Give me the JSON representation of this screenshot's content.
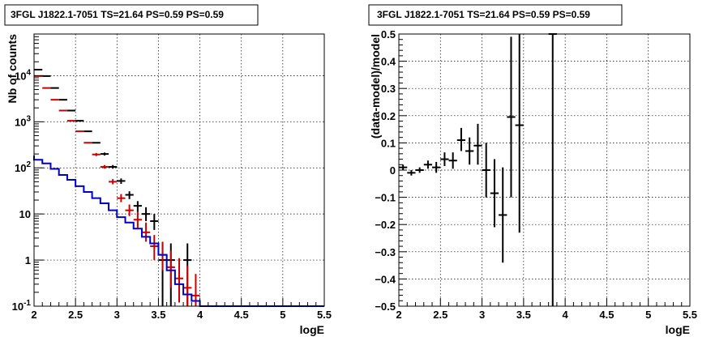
{
  "chart_data": [
    {
      "type": "scatter",
      "title": "3FGL J1822.1-7051 TS=21.64 PS=0.59 PS=0.59",
      "xlabel": "logE",
      "ylabel": "Nb of counts",
      "xlim": [
        2,
        5.5
      ],
      "ylim": [
        0.1,
        80000
      ],
      "yscale": "log",
      "grid": true,
      "x_ticks": [
        "2",
        "2.5",
        "3",
        "3.5",
        "4",
        "4.5",
        "5",
        "5.5"
      ],
      "y_ticks": [
        "10^-1",
        "1",
        "10",
        "10^2",
        "10^3",
        "10^4"
      ],
      "series": [
        {
          "style": "points",
          "color": "#000000",
          "points": [
            {
              "x": 2.05,
              "y": 13500,
              "lo": 13500,
              "hi": 13500
            },
            {
              "x": 2.15,
              "y": 9800,
              "lo": 9800,
              "hi": 9800
            },
            {
              "x": 2.25,
              "y": 5400,
              "lo": 5400,
              "hi": 5400
            },
            {
              "x": 2.35,
              "y": 3000,
              "lo": 3000,
              "hi": 3000
            },
            {
              "x": 2.45,
              "y": 1750,
              "lo": 1750,
              "hi": 1750
            },
            {
              "x": 2.55,
              "y": 1050,
              "lo": 1050,
              "hi": 1050
            },
            {
              "x": 2.65,
              "y": 620,
              "lo": 620,
              "hi": 620
            },
            {
              "x": 2.75,
              "y": 350,
              "lo": 350,
              "hi": 350
            },
            {
              "x": 2.85,
              "y": 200,
              "lo": 185,
              "hi": 215
            },
            {
              "x": 2.95,
              "y": 105,
              "lo": 96,
              "hi": 115
            },
            {
              "x": 3.05,
              "y": 52,
              "lo": 45,
              "hi": 59
            },
            {
              "x": 3.15,
              "y": 26,
              "lo": 21,
              "hi": 31
            },
            {
              "x": 3.25,
              "y": 15,
              "lo": 11,
              "hi": 19
            },
            {
              "x": 3.35,
              "y": 10,
              "lo": 7,
              "hi": 14
            },
            {
              "x": 3.45,
              "y": 7,
              "lo": 4.5,
              "hi": 10
            },
            {
              "x": 3.55,
              "y": 1,
              "lo": 0.1,
              "hi": 2.3
            },
            {
              "x": 3.65,
              "y": 1,
              "lo": 0.1,
              "hi": 2.3
            },
            {
              "x": 3.85,
              "y": 1,
              "lo": 0.1,
              "hi": 2.3
            }
          ]
        },
        {
          "style": "points",
          "color": "#cc0000",
          "points": [
            {
              "x": 1.95,
              "y": 13500,
              "lo": 13500,
              "hi": 13500
            },
            {
              "x": 2.05,
              "y": 9800,
              "lo": 9800,
              "hi": 9800
            },
            {
              "x": 2.15,
              "y": 5400,
              "lo": 5400,
              "hi": 5400
            },
            {
              "x": 2.25,
              "y": 3000,
              "lo": 3000,
              "hi": 3000
            },
            {
              "x": 2.35,
              "y": 1750,
              "lo": 1750,
              "hi": 1750
            },
            {
              "x": 2.45,
              "y": 1050,
              "lo": 1050,
              "hi": 1050
            },
            {
              "x": 2.55,
              "y": 620,
              "lo": 620,
              "hi": 620
            },
            {
              "x": 2.65,
              "y": 350,
              "lo": 350,
              "hi": 350
            },
            {
              "x": 2.75,
              "y": 195,
              "lo": 180,
              "hi": 210
            },
            {
              "x": 2.85,
              "y": 105,
              "lo": 96,
              "hi": 115
            },
            {
              "x": 2.95,
              "y": 50,
              "lo": 44,
              "hi": 57
            },
            {
              "x": 3.05,
              "y": 22,
              "lo": 18,
              "hi": 27
            },
            {
              "x": 3.15,
              "y": 12,
              "lo": 9,
              "hi": 16
            },
            {
              "x": 3.25,
              "y": 7.5,
              "lo": 5,
              "hi": 11
            },
            {
              "x": 3.35,
              "y": 4,
              "lo": 2.5,
              "hi": 6.5
            },
            {
              "x": 3.45,
              "y": 2,
              "lo": 1,
              "hi": 3.5
            },
            {
              "x": 3.55,
              "y": 1.3,
              "lo": 0.6,
              "hi": 2.5
            },
            {
              "x": 3.65,
              "y": 0.7,
              "lo": 0.25,
              "hi": 1.6
            },
            {
              "x": 3.75,
              "y": 0.4,
              "lo": 0.12,
              "hi": 1.1
            },
            {
              "x": 3.85,
              "y": 0.25,
              "lo": 0.1,
              "hi": 0.75
            },
            {
              "x": 3.95,
              "y": 0.17,
              "lo": 0.1,
              "hi": 0.5
            }
          ]
        },
        {
          "style": "step",
          "color": "#0000cc",
          "edges": [
            1.9,
            2.0,
            2.1,
            2.2,
            2.3,
            2.4,
            2.5,
            2.6,
            2.7,
            2.8,
            2.9,
            3.0,
            3.1,
            3.2,
            3.3,
            3.4,
            3.5,
            3.6,
            3.7,
            3.8,
            3.9,
            4.0,
            4.1,
            4.2,
            4.3,
            4.4,
            4.5,
            5.5
          ],
          "values": [
            185,
            150,
            125,
            95,
            70,
            55,
            40,
            30,
            22,
            17,
            12,
            8.5,
            6.5,
            4.8,
            3.2,
            2.3,
            1.3,
            0.6,
            0.3,
            0.18,
            0.13,
            0.1,
            0.1,
            0.1,
            0.1,
            0.1,
            0.1
          ]
        }
      ]
    },
    {
      "type": "scatter",
      "title": "3FGL J1822.1-7051 TS=21.64 PS=0.59 PS=0.59",
      "xlabel": "logE",
      "ylabel": "(data-model)/model",
      "xlim": [
        2,
        5.5
      ],
      "ylim": [
        -0.5,
        0.5
      ],
      "grid": true,
      "x_ticks": [
        "2",
        "2.5",
        "3",
        "3.5",
        "4",
        "4.5",
        "5",
        "5.5"
      ],
      "y_ticks": [
        "−0.5",
        "−0.4",
        "−0.3",
        "−0.2",
        "−0.1",
        "0",
        "0.1",
        "0.2",
        "0.3",
        "0.4",
        "0.5"
      ],
      "series": [
        {
          "style": "points",
          "color": "#000000",
          "points": [
            {
              "x": 2.05,
              "y": 0.01,
              "lo": 0.0,
              "hi": 0.02
            },
            {
              "x": 2.15,
              "y": -0.01,
              "lo": -0.02,
              "hi": 0.0
            },
            {
              "x": 2.25,
              "y": 0.0,
              "lo": -0.01,
              "hi": 0.01
            },
            {
              "x": 2.35,
              "y": 0.02,
              "lo": 0.005,
              "hi": 0.035
            },
            {
              "x": 2.45,
              "y": 0.01,
              "lo": -0.01,
              "hi": 0.03
            },
            {
              "x": 2.55,
              "y": 0.04,
              "lo": 0.015,
              "hi": 0.065
            },
            {
              "x": 2.65,
              "y": 0.035,
              "lo": 0.005,
              "hi": 0.065
            },
            {
              "x": 2.75,
              "y": 0.11,
              "lo": 0.07,
              "hi": 0.155
            },
            {
              "x": 2.85,
              "y": 0.07,
              "lo": 0.02,
              "hi": 0.12
            },
            {
              "x": 2.95,
              "y": 0.09,
              "lo": 0.02,
              "hi": 0.17
            },
            {
              "x": 3.05,
              "y": 0.0,
              "lo": -0.1,
              "hi": 0.1
            },
            {
              "x": 3.15,
              "y": -0.085,
              "lo": -0.21,
              "hi": 0.04
            },
            {
              "x": 3.25,
              "y": -0.165,
              "lo": -0.34,
              "hi": 0.01
            },
            {
              "x": 3.35,
              "y": 0.195,
              "lo": -0.1,
              "hi": 0.49
            },
            {
              "x": 3.45,
              "y": 0.165,
              "lo": -0.23,
              "hi": 0.5
            },
            {
              "x": 3.85,
              "y": 0.5,
              "lo": -0.5,
              "hi": 0.5
            }
          ]
        }
      ]
    }
  ]
}
